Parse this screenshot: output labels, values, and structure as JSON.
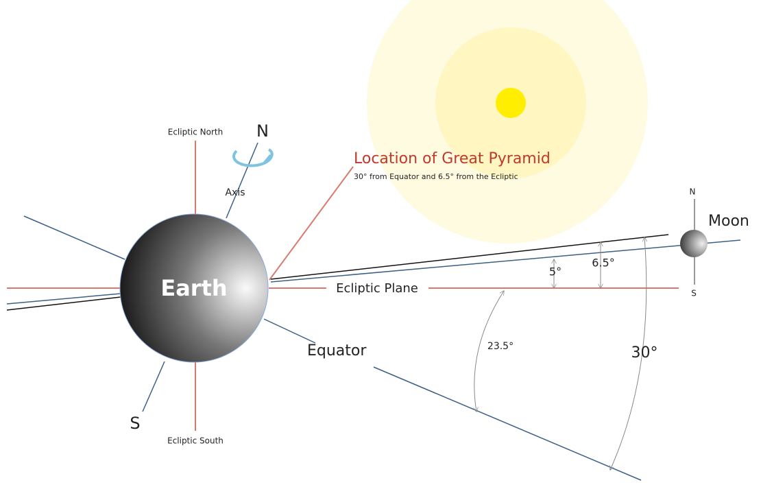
{
  "earth": {
    "label": "Earth",
    "north": "N",
    "south": "S",
    "axis": "Axis",
    "ecliptic_north": "Ecliptic North",
    "ecliptic_south": "Ecliptic South"
  },
  "pyramid": {
    "title": "Location of Great Pyramid",
    "subtitle": "30° from Equator and 6.5° from the Ecliptic"
  },
  "moon": {
    "label": "Moon",
    "north": "N",
    "south": "S"
  },
  "planes": {
    "ecliptic": "Ecliptic Plane",
    "equator": "Equator"
  },
  "angles": [
    "5°",
    "6.5°",
    "23.5°",
    "30°"
  ]
}
